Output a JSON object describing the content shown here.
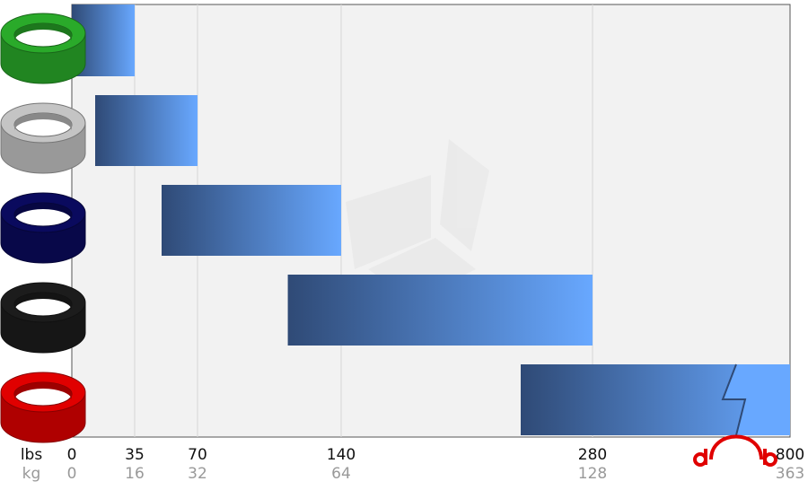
{
  "chart_data": {
    "type": "range-bar",
    "series": [
      {
        "color": "#2aaa2a",
        "values": [
          0,
          35
        ]
      },
      {
        "color": "#c4c4c4",
        "values": [
          13,
          70
        ]
      },
      {
        "color": "#0a0a5e",
        "values": [
          50,
          140
        ]
      },
      {
        "color": "#1c1c1c",
        "values": [
          114,
          280
        ]
      },
      {
        "color": "#e00000",
        "values": [
          240,
          800
        ]
      }
    ],
    "xlim": [
      0,
      800
    ],
    "xticks": [
      0,
      35,
      70,
      140,
      280,
      800
    ],
    "xlabel": "lbs",
    "x2label": "kg",
    "x2ticks": [
      0,
      16,
      32,
      64,
      128,
      363
    ],
    "grid": true
  }
}
